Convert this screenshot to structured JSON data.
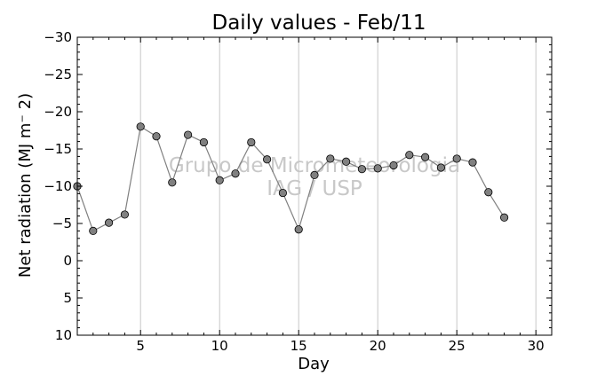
{
  "chart_data": {
    "type": "line",
    "title": "Daily values - Feb/11",
    "xlabel": "Day",
    "ylabel": "Net radiation (MJ m⁻ 2)",
    "xlim": [
      1,
      31
    ],
    "ylim": [
      -30,
      10
    ],
    "y_axis_inverted": true,
    "xticks": [
      5,
      10,
      15,
      20,
      25,
      30
    ],
    "yticks": [
      -30,
      -25,
      -20,
      -15,
      -10,
      -5,
      0,
      5,
      10
    ],
    "grid": "vertical",
    "watermark": [
      "Grupo de Micrometeorologia",
      "IAG / USP"
    ],
    "colors": {
      "line": "#808080",
      "marker_fill": "#808080",
      "marker_edge": "#000000",
      "grid": "#c8c8c8",
      "watermark": "#c8c8c8"
    },
    "series": [
      {
        "x": [
          1,
          2,
          3,
          4,
          5,
          6,
          7,
          8,
          9,
          10,
          11,
          12,
          13,
          14,
          15,
          16,
          17,
          18,
          19,
          20,
          21,
          22,
          23,
          24,
          25,
          26,
          27,
          28
        ],
        "values": [
          -10.0,
          -4.0,
          -5.1,
          -6.2,
          -18.0,
          -16.7,
          -10.5,
          -16.9,
          -15.9,
          -10.8,
          -11.7,
          -15.9,
          -13.6,
          -9.1,
          -4.2,
          -11.5,
          -13.7,
          -13.3,
          -12.3,
          -12.4,
          -12.8,
          -14.2,
          -13.9,
          -12.5,
          -13.7,
          -13.2,
          -9.2,
          -5.8
        ]
      }
    ]
  }
}
